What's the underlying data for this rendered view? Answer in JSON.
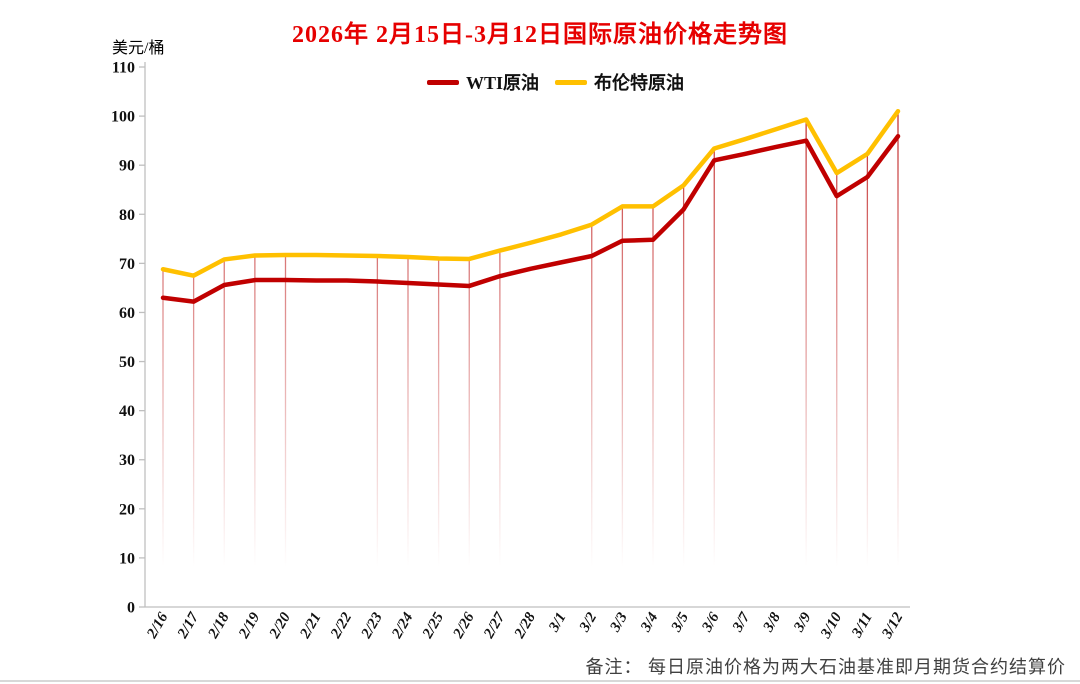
{
  "page": {
    "title": "2026年 2月15日-3月12日国际原油价格走势图",
    "y_unit_label": "美元/桶",
    "footnote": "备注： 每日原油价格为两大石油基准即月期货合约结算价"
  },
  "legend": {
    "wti": {
      "label": "WTI原油",
      "color": "#c00000"
    },
    "brent": {
      "label": "布伦特原油",
      "color": "#ffc000"
    }
  },
  "colors": {
    "title_red": "#e60000",
    "axis_gray": "#bfbfbf",
    "drop_line_red": "#c02020"
  },
  "chart_data": {
    "type": "line",
    "title": "2026年 2月15日-3月12日国际原油价格走势图",
    "xlabel": "",
    "ylabel": "美元/桶",
    "ylim": [
      0,
      110
    ],
    "y_ticks": [
      0,
      10,
      20,
      30,
      40,
      50,
      60,
      70,
      80,
      90,
      100,
      110
    ],
    "grid": false,
    "legend_position": "top",
    "categories": [
      "2/16",
      "2/17",
      "2/18",
      "2/19",
      "2/20",
      "2/21",
      "2/22",
      "2/23",
      "2/24",
      "2/25",
      "2/26",
      "2/27",
      "2/28",
      "3/1",
      "3/2",
      "3/3",
      "3/4",
      "3/5",
      "3/6",
      "3/7",
      "3/8",
      "3/9",
      "3/10",
      "3/11",
      "3/12"
    ],
    "series": [
      {
        "name": "WTI原油",
        "color": "#c00000",
        "values": [
          63.0,
          62.2,
          65.6,
          66.6,
          66.6,
          66.5,
          66.5,
          66.3,
          66.0,
          65.7,
          65.4,
          67.4,
          68.9,
          70.2,
          71.5,
          74.6,
          74.8,
          81.0,
          91.0,
          92.3,
          93.7,
          95.0,
          83.7,
          87.6,
          95.9
        ]
      },
      {
        "name": "布伦特原油",
        "color": "#ffc000",
        "values": [
          68.8,
          67.5,
          70.8,
          71.6,
          71.7,
          71.7,
          71.6,
          71.5,
          71.3,
          71.0,
          70.9,
          72.6,
          74.2,
          75.9,
          77.9,
          81.6,
          81.6,
          85.9,
          93.4,
          95.3,
          97.3,
          99.3,
          88.4,
          92.3,
          101.0
        ]
      }
    ],
    "drop_lines": true,
    "no_drop_line_categories": [
      "2/21",
      "2/22",
      "2/28",
      "3/1",
      "3/7",
      "3/8"
    ]
  }
}
